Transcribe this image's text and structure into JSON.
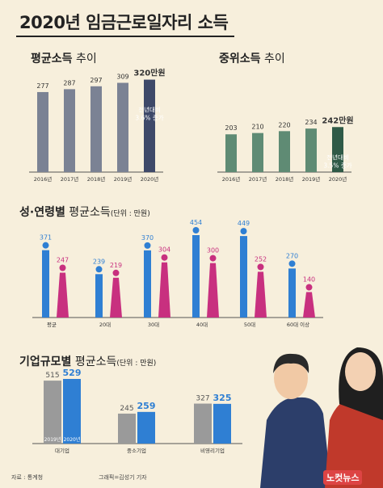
{
  "title": "2020년 임금근로일자리 소득",
  "footer": {
    "source": "자료 : 통계청",
    "credit": "그래픽=김성기 기자",
    "logo": "노컷뉴스"
  },
  "colors": {
    "gray": "#7b8294",
    "navy": "#3e4969",
    "green": "#5f8b74",
    "dkgreen": "#2f5a47",
    "blue": "#2f7fd3",
    "magenta": "#c8307f",
    "lgray": "#9a9a9a"
  },
  "chart_data": [
    {
      "type": "bar",
      "title_bold": "평균소득",
      "title_rest": "추이",
      "categories": [
        "2016년",
        "2017년",
        "2018년",
        "2019년",
        "2020년"
      ],
      "values": [
        277,
        287,
        297,
        309,
        320
      ],
      "value_labels": [
        "277",
        "287",
        "297",
        "309",
        "320만원"
      ],
      "annotation": [
        "전년대비",
        "3.6% 증가"
      ]
    },
    {
      "type": "bar",
      "title_bold": "중위소득",
      "title_rest": "추이",
      "categories": [
        "2016년",
        "2017년",
        "2018년",
        "2019년",
        "2020년"
      ],
      "values": [
        203,
        210,
        220,
        234,
        242
      ],
      "value_labels": [
        "203",
        "210",
        "220",
        "234",
        "242만원"
      ],
      "annotation": [
        "전년대비",
        "3.5% 증가"
      ]
    },
    {
      "type": "bar",
      "title_bold": "성·연령별",
      "title_rest": "평균소득",
      "unit": "(단위 : 만원)",
      "categories": [
        "평균",
        "20대",
        "30대",
        "40대",
        "50대",
        "60대 이상"
      ],
      "series": [
        {
          "values": [
            371,
            239,
            370,
            454,
            449,
            270
          ]
        },
        {
          "values": [
            247,
            219,
            304,
            300,
            252,
            140
          ]
        }
      ]
    },
    {
      "type": "bar",
      "title_bold": "기업규모별",
      "title_rest": "평균소득",
      "unit": "(단위 : 만원)",
      "categories": [
        "대기업",
        "중소기업",
        "비영리기업"
      ],
      "series": [
        {
          "name": "2019년",
          "values": [
            515,
            245,
            327
          ]
        },
        {
          "name": "2020년",
          "values": [
            529,
            259,
            325
          ]
        }
      ]
    }
  ]
}
